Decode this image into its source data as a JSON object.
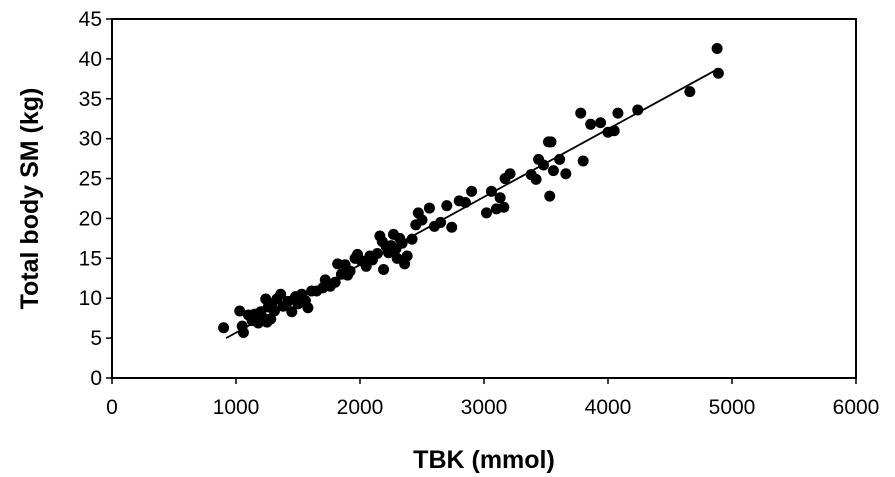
{
  "chart_data": {
    "type": "scatter",
    "xlabel": "TBK (mmol)",
    "ylabel": "Total body SM (kg)",
    "xlim": [
      0,
      6000
    ],
    "ylim": [
      0,
      45
    ],
    "x_ticks": [
      0,
      1000,
      2000,
      3000,
      4000,
      5000,
      6000
    ],
    "y_ticks": [
      0,
      5,
      10,
      15,
      20,
      25,
      30,
      35,
      40,
      45
    ],
    "grid": false,
    "legend": "none",
    "marker_color": "#000000",
    "trend_line": {
      "x": [
        920,
        4870
      ],
      "y": [
        5.0,
        38.6
      ]
    },
    "points": [
      {
        "x": 900,
        "y": 6.3
      },
      {
        "x": 1030,
        "y": 8.4
      },
      {
        "x": 1050,
        "y": 6.5
      },
      {
        "x": 1060,
        "y": 5.7
      },
      {
        "x": 1100,
        "y": 7.9
      },
      {
        "x": 1130,
        "y": 7.2
      },
      {
        "x": 1150,
        "y": 8.0
      },
      {
        "x": 1180,
        "y": 6.9
      },
      {
        "x": 1200,
        "y": 8.3
      },
      {
        "x": 1220,
        "y": 7.5
      },
      {
        "x": 1240,
        "y": 9.9
      },
      {
        "x": 1250,
        "y": 7.0
      },
      {
        "x": 1260,
        "y": 8.9
      },
      {
        "x": 1280,
        "y": 7.4
      },
      {
        "x": 1290,
        "y": 9.3
      },
      {
        "x": 1310,
        "y": 8.4
      },
      {
        "x": 1330,
        "y": 9.9
      },
      {
        "x": 1360,
        "y": 10.5
      },
      {
        "x": 1380,
        "y": 9.0
      },
      {
        "x": 1420,
        "y": 9.6
      },
      {
        "x": 1450,
        "y": 8.3
      },
      {
        "x": 1480,
        "y": 10.2
      },
      {
        "x": 1500,
        "y": 9.3
      },
      {
        "x": 1530,
        "y": 10.5
      },
      {
        "x": 1560,
        "y": 9.7
      },
      {
        "x": 1580,
        "y": 8.8
      },
      {
        "x": 1610,
        "y": 10.9
      },
      {
        "x": 1650,
        "y": 10.9
      },
      {
        "x": 1700,
        "y": 11.3
      },
      {
        "x": 1720,
        "y": 12.3
      },
      {
        "x": 1760,
        "y": 11.5
      },
      {
        "x": 1800,
        "y": 12.0
      },
      {
        "x": 1820,
        "y": 14.3
      },
      {
        "x": 1850,
        "y": 13.0
      },
      {
        "x": 1880,
        "y": 14.2
      },
      {
        "x": 1900,
        "y": 12.9
      },
      {
        "x": 1920,
        "y": 13.4
      },
      {
        "x": 1960,
        "y": 15.0
      },
      {
        "x": 1980,
        "y": 15.5
      },
      {
        "x": 2010,
        "y": 14.7
      },
      {
        "x": 2050,
        "y": 14.0
      },
      {
        "x": 2080,
        "y": 15.3
      },
      {
        "x": 2100,
        "y": 14.8
      },
      {
        "x": 2140,
        "y": 15.6
      },
      {
        "x": 2160,
        "y": 17.8
      },
      {
        "x": 2180,
        "y": 17.1
      },
      {
        "x": 2190,
        "y": 13.6
      },
      {
        "x": 2210,
        "y": 16.5
      },
      {
        "x": 2230,
        "y": 15.7
      },
      {
        "x": 2250,
        "y": 16.6
      },
      {
        "x": 2270,
        "y": 18.0
      },
      {
        "x": 2290,
        "y": 16.2
      },
      {
        "x": 2300,
        "y": 15.0
      },
      {
        "x": 2320,
        "y": 17.5
      },
      {
        "x": 2340,
        "y": 16.9
      },
      {
        "x": 2360,
        "y": 14.3
      },
      {
        "x": 2380,
        "y": 15.3
      },
      {
        "x": 2420,
        "y": 17.4
      },
      {
        "x": 2450,
        "y": 19.2
      },
      {
        "x": 2470,
        "y": 20.7
      },
      {
        "x": 2500,
        "y": 19.8
      },
      {
        "x": 2560,
        "y": 21.3
      },
      {
        "x": 2600,
        "y": 19.0
      },
      {
        "x": 2650,
        "y": 19.5
      },
      {
        "x": 2700,
        "y": 21.6
      },
      {
        "x": 2740,
        "y": 18.9
      },
      {
        "x": 2800,
        "y": 22.2
      },
      {
        "x": 2850,
        "y": 22.0
      },
      {
        "x": 2900,
        "y": 23.4
      },
      {
        "x": 3020,
        "y": 20.7
      },
      {
        "x": 3060,
        "y": 23.4
      },
      {
        "x": 3100,
        "y": 21.2
      },
      {
        "x": 3130,
        "y": 22.6
      },
      {
        "x": 3160,
        "y": 21.4
      },
      {
        "x": 3170,
        "y": 25.0
      },
      {
        "x": 3210,
        "y": 25.6
      },
      {
        "x": 3380,
        "y": 25.5
      },
      {
        "x": 3420,
        "y": 24.9
      },
      {
        "x": 3440,
        "y": 27.4
      },
      {
        "x": 3480,
        "y": 26.7
      },
      {
        "x": 3520,
        "y": 29.6
      },
      {
        "x": 3540,
        "y": 29.6
      },
      {
        "x": 3530,
        "y": 22.8
      },
      {
        "x": 3560,
        "y": 26.0
      },
      {
        "x": 3610,
        "y": 27.4
      },
      {
        "x": 3660,
        "y": 25.6
      },
      {
        "x": 3780,
        "y": 33.2
      },
      {
        "x": 3800,
        "y": 27.2
      },
      {
        "x": 3860,
        "y": 31.8
      },
      {
        "x": 3940,
        "y": 32.0
      },
      {
        "x": 4000,
        "y": 30.8
      },
      {
        "x": 4050,
        "y": 31.0
      },
      {
        "x": 4080,
        "y": 33.2
      },
      {
        "x": 4240,
        "y": 33.6
      },
      {
        "x": 4660,
        "y": 35.9
      },
      {
        "x": 4880,
        "y": 41.3
      },
      {
        "x": 4890,
        "y": 38.2
      }
    ]
  }
}
